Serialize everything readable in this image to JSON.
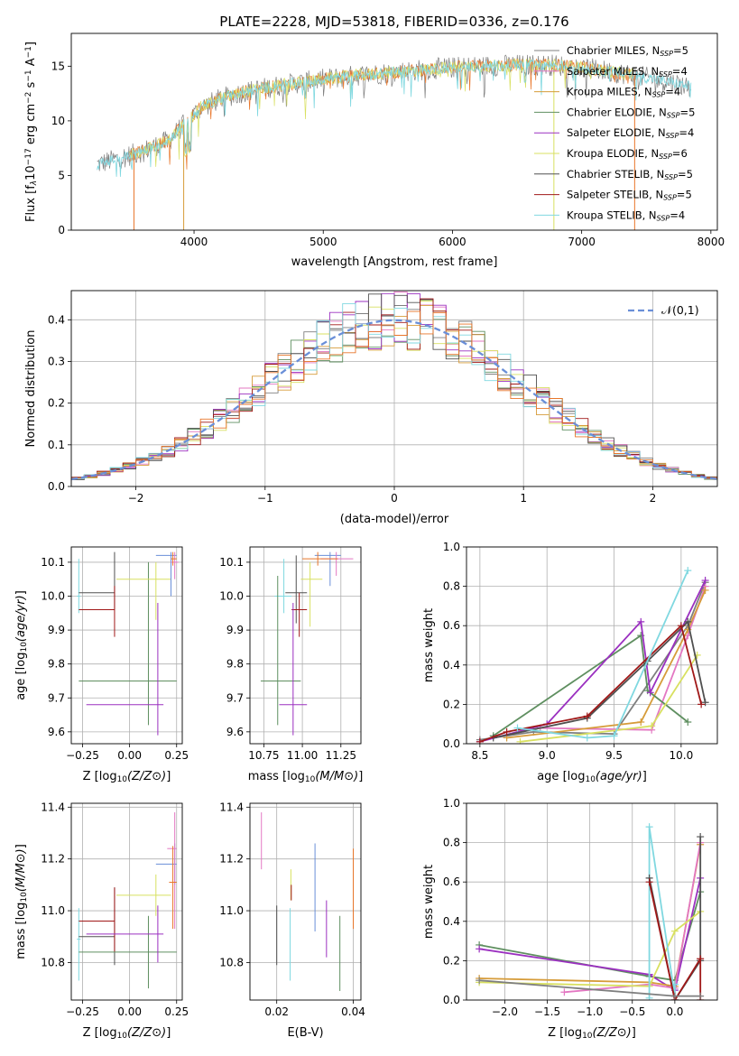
{
  "figure": {
    "title": "PLATE=2228, MJD=53818, FIBERID=0336, z=0.176"
  },
  "colors": {
    "Chabrier MILES": "#7f7f7f",
    "Salpeter MILES": "#e377c2",
    "Kroupa MILES": "#d69c3a",
    "Chabrier ELODIE": "#5f8f60",
    "Salpeter ELODIE": "#9b30c0",
    "Kroupa ELODIE": "#d8e060",
    "Chabrier STELIB": "#505050",
    "Salpeter STELIB": "#a01818",
    "Kroupa STELIB": "#80d8e0",
    "orange": "#e8762a",
    "blue": "#6a8fd8"
  },
  "chart_data": [
    {
      "id": "spectrum",
      "type": "line",
      "title": "PLATE=2228, MJD=53818, FIBERID=0336, z=0.176",
      "xlabel": "wavelength [Angstrom, rest frame]",
      "ylabel": "Flux [f_λ 10^-17 erg cm^-2 s^-1 A^-1]",
      "xlim": [
        3050,
        8050
      ],
      "ylim": [
        0,
        18
      ],
      "xticks": [
        "4000",
        "5000",
        "6000",
        "7000",
        "8000"
      ],
      "yticks": [
        "0",
        "5",
        "10",
        "15"
      ],
      "grid": false,
      "legend_position": "top-right",
      "continuum_x": [
        3250,
        3400,
        3600,
        3800,
        3950,
        4050,
        4200,
        4400,
        4700,
        5000,
        5300,
        5600,
        5900,
        6200,
        6500,
        6800,
        7100,
        7400,
        7700,
        7850
      ],
      "continuum_y": [
        6.0,
        6.5,
        7.2,
        8.2,
        10.0,
        11.2,
        12.0,
        12.7,
        13.3,
        13.8,
        14.2,
        14.5,
        14.8,
        15.0,
        15.1,
        15.1,
        14.7,
        14.2,
        13.5,
        13.1
      ],
      "series": [
        {
          "name": "Chabrier MILES",
          "nssp": "5"
        },
        {
          "name": "Salpeter MILES",
          "nssp": "4"
        },
        {
          "name": "Kroupa MILES",
          "nssp": "4"
        },
        {
          "name": "Chabrier ELODIE",
          "nssp": "5"
        },
        {
          "name": "Salpeter ELODIE",
          "nssp": "4"
        },
        {
          "name": "Kroupa ELODIE",
          "nssp": "6"
        },
        {
          "name": "Chabrier STELIB",
          "nssp": "5"
        },
        {
          "name": "Salpeter STELIB",
          "nssp": "5"
        },
        {
          "name": "Kroupa STELIB",
          "nssp": "4"
        }
      ]
    },
    {
      "id": "residuals",
      "type": "line",
      "xlabel": "(data-model)/error",
      "ylabel": "Normed distribution",
      "xlim": [
        -2.5,
        2.5
      ],
      "ylim": [
        0,
        0.47
      ],
      "xticks": [
        "−2",
        "−1",
        "0",
        "1",
        "2"
      ],
      "yticks": [
        "0.0",
        "0.1",
        "0.2",
        "0.3",
        "0.4"
      ],
      "grid": true,
      "legend_position": "top-right",
      "reference": {
        "name": "𝒩(0,1)",
        "mean": 0,
        "sigma": 1
      }
    },
    {
      "id": "age-vs-Z",
      "type": "scatter",
      "xlabel": "Z [log10(Z/Z⊙)]",
      "ylabel": "age [log10(age/yr)]",
      "xlim": [
        -0.31,
        0.28
      ],
      "ylim": [
        9.565,
        10.145
      ],
      "xticks": [
        "−0.25",
        "0.00",
        "0.25"
      ],
      "yticks": [
        "9.6",
        "9.7",
        "9.8",
        "9.9",
        "10.0",
        "10.1"
      ],
      "grid": true
    },
    {
      "id": "age-vs-mass",
      "type": "scatter",
      "xlabel": "mass [log10(M/M⊙)]",
      "ylabel": "",
      "xlim": [
        10.66,
        11.38
      ],
      "ylim": [
        9.565,
        10.145
      ],
      "xticks": [
        "10.75",
        "11.00",
        "11.25"
      ],
      "yticks": [
        "9.6",
        "9.7",
        "9.8",
        "9.9",
        "10.0",
        "10.1"
      ],
      "grid": true
    },
    {
      "id": "weight-vs-age",
      "type": "line",
      "xlabel": "age [log10(age/yr)]",
      "ylabel": "mass weight",
      "xlim": [
        8.4,
        10.27
      ],
      "ylim": [
        0,
        1
      ],
      "xticks": [
        "8.5",
        "9.0",
        "9.5",
        "10.0"
      ],
      "yticks": [
        "0.0",
        "0.2",
        "0.4",
        "0.6",
        "0.8",
        "1.0"
      ],
      "grid": true,
      "series": [
        {
          "name": "Chabrier MILES",
          "x": [
            8.5,
            8.9,
            9.5,
            10.05,
            10.18
          ],
          "y": [
            0.02,
            0.06,
            0.05,
            0.6,
            0.82
          ]
        },
        {
          "name": "Salpeter MILES",
          "x": [
            8.95,
            9.78,
            10.05,
            10.18
          ],
          "y": [
            0.08,
            0.07,
            0.55,
            0.8
          ]
        },
        {
          "name": "Kroupa MILES",
          "x": [
            8.7,
            9.7,
            10.05,
            10.18
          ],
          "y": [
            0.03,
            0.11,
            0.58,
            0.78
          ]
        },
        {
          "name": "Chabrier ELODIE",
          "x": [
            8.6,
            9.7,
            9.75,
            10.05
          ],
          "y": [
            0.04,
            0.55,
            0.27,
            0.11
          ]
        },
        {
          "name": "Salpeter ELODIE",
          "x": [
            8.5,
            9.0,
            9.7,
            9.77,
            10.18
          ],
          "y": [
            0.01,
            0.1,
            0.62,
            0.26,
            0.83
          ]
        },
        {
          "name": "Kroupa ELODIE",
          "x": [
            8.8,
            9.78,
            10.12
          ],
          "y": [
            0.01,
            0.09,
            0.45
          ]
        },
        {
          "name": "Chabrier STELIB",
          "x": [
            8.6,
            9.3,
            9.75,
            10.05,
            10.18
          ],
          "y": [
            0.03,
            0.13,
            0.42,
            0.62,
            0.21
          ]
        },
        {
          "name": "Salpeter STELIB",
          "x": [
            8.5,
            8.7,
            9.3,
            10.0,
            10.15
          ],
          "y": [
            0.01,
            0.06,
            0.14,
            0.6,
            0.2
          ]
        },
        {
          "name": "Kroupa STELIB",
          "x": [
            8.78,
            9.3,
            9.5,
            10.05
          ],
          "y": [
            0.08,
            0.03,
            0.04,
            0.88
          ]
        }
      ]
    },
    {
      "id": "mass-vs-Z",
      "type": "scatter",
      "xlabel": "Z [log10(Z/Z⊙)]",
      "ylabel": "mass [log10(M/M⊙)]",
      "xlim": [
        -0.31,
        0.28
      ],
      "ylim": [
        10.655,
        11.415
      ],
      "xticks": [
        "−0.25",
        "0.00",
        "0.25"
      ],
      "yticks": [
        "10.8",
        "11.0",
        "11.2",
        "11.4"
      ],
      "grid": true
    },
    {
      "id": "mass-vs-ebv",
      "type": "scatter",
      "xlabel": "E(B-V)",
      "ylabel": "",
      "xlim": [
        0.013,
        0.042
      ],
      "ylim": [
        10.655,
        11.415
      ],
      "xticks": [
        "0.02",
        "0.04"
      ],
      "yticks": [
        "10.8",
        "11.0",
        "11.2",
        "11.4"
      ],
      "grid": true
    },
    {
      "id": "weight-vs-Z",
      "type": "line",
      "xlabel": "Z [log10(Z/Z⊙)]",
      "ylabel": "mass weight",
      "xlim": [
        -2.45,
        0.5
      ],
      "ylim": [
        0,
        1
      ],
      "xticks": [
        "−2.0",
        "−1.5",
        "−1.0",
        "−0.5",
        "0.0"
      ],
      "yticks": [
        "0.0",
        "0.2",
        "0.4",
        "0.6",
        "0.8",
        "1.0"
      ],
      "grid": true,
      "series": [
        {
          "name": "Chabrier ELODIE",
          "x": [
            -2.3,
            -0.3,
            0.0,
            0.3
          ],
          "y": [
            0.28,
            0.12,
            0.1,
            0.55
          ]
        },
        {
          "name": "Salpeter ELODIE",
          "x": [
            -2.3,
            -0.3,
            0.0,
            0.3
          ],
          "y": [
            0.26,
            0.13,
            0.05,
            0.62
          ]
        },
        {
          "name": "Kroupa MILES",
          "x": [
            -2.3,
            -0.3,
            0.0,
            0.3
          ],
          "y": [
            0.11,
            0.09,
            0.07,
            0.79
          ]
        },
        {
          "name": "Salpeter MILES",
          "x": [
            -1.3,
            -0.3,
            0.0,
            0.3
          ],
          "y": [
            0.04,
            0.08,
            0.06,
            0.8
          ]
        },
        {
          "name": "Kroupa ELODIE",
          "x": [
            -2.3,
            -0.3,
            0.0,
            0.3
          ],
          "y": [
            0.09,
            0.07,
            0.35,
            0.45
          ]
        },
        {
          "name": "Kroupa STELIB",
          "x": [
            -0.3,
            -0.3,
            0.0,
            0.0
          ],
          "y": [
            0.01,
            0.88,
            0.02,
            0.08
          ]
        },
        {
          "name": "Chabrier STELIB",
          "x": [
            -0.3,
            0.0,
            0.3,
            0.3
          ],
          "y": [
            0.62,
            0.0,
            0.2,
            0.83
          ]
        },
        {
          "name": "Salpeter STELIB",
          "x": [
            -0.3,
            0.0,
            0.3,
            0.3
          ],
          "y": [
            0.6,
            0.0,
            0.21,
            0.0
          ]
        },
        {
          "name": "Chabrier MILES",
          "x": [
            -2.3,
            0.0,
            0.3
          ],
          "y": [
            0.1,
            0.02,
            0.02
          ]
        }
      ]
    }
  ]
}
